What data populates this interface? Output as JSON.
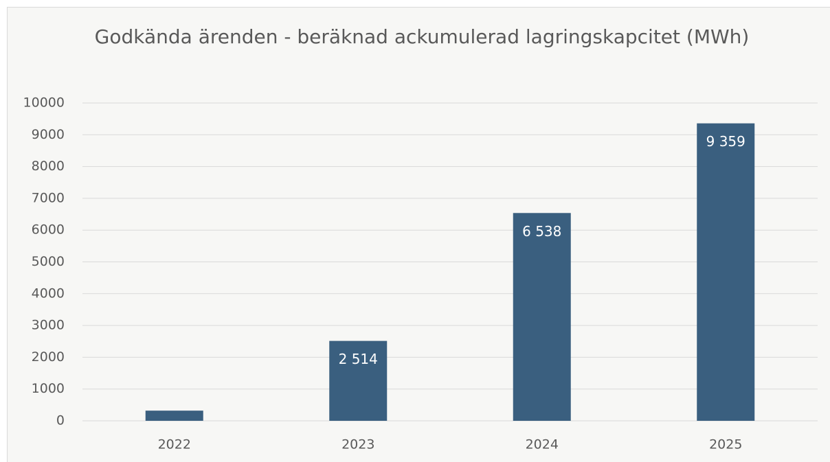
{
  "chart_data": {
    "type": "bar",
    "title": "Godkända ärenden - beräknad ackumulerad lagringskapcitet (MWh)",
    "categories": [
      "2022",
      "2023",
      "2024",
      "2025"
    ],
    "values": [
      320,
      2514,
      6538,
      9359
    ],
    "value_labels": [
      null,
      "2 514",
      "6 538",
      "9 359"
    ],
    "color": "#3a5f7f",
    "ylim": [
      0,
      10000
    ],
    "yticks": [
      0,
      1000,
      2000,
      3000,
      4000,
      5000,
      6000,
      7000,
      8000,
      9000,
      10000
    ],
    "grid": true
  }
}
